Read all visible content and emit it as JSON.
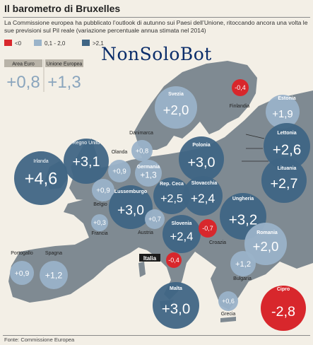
{
  "title": "Il barometro di Bruxelles",
  "subtitle": "La Commissione europea ha pubblicato l’outlook di autunno sui Paesi dell’Unione, ritoccando ancora una volta le sue previsioni sul Pil reale (variazione percentuale annua stimata nel 2014)",
  "source": "Fonte: Commissione Europea",
  "watermark": "NonSoloBot",
  "colors": {
    "negative": "#d8272c",
    "low": "#9ab3c9",
    "high": "#3f6584",
    "map": "#7f8a92",
    "background": "#f3efe6"
  },
  "chart_data": {
    "type": "bubble-map",
    "legend": [
      {
        "label": "<0",
        "color": "#d8272c"
      },
      {
        "label": "0,1 - 2,0",
        "color": "#9ab3c9"
      },
      {
        "label": ">2,1",
        "color": "#3f6584"
      }
    ],
    "summary": [
      {
        "label": "Area Euro",
        "value": 0.8,
        "display": "+0,8"
      },
      {
        "label": "Unione Europea",
        "value": 1.3,
        "display": "+1,3"
      }
    ],
    "countries": [
      {
        "name": "Irlanda",
        "value": 4.6,
        "display": "+4,6"
      },
      {
        "name": "Regno Unito",
        "value": 3.1,
        "display": "+3,1"
      },
      {
        "name": "Olanda",
        "value": 0.9,
        "display": "+0,9"
      },
      {
        "name": "Danimarca",
        "value": 0.8,
        "display": "+0,8"
      },
      {
        "name": "Germania",
        "value": 1.3,
        "display": "+1,3"
      },
      {
        "name": "Belgio",
        "value": 0.9,
        "display": "+0,9"
      },
      {
        "name": "Lussemburgo",
        "value": 3.0,
        "display": "+3,0"
      },
      {
        "name": "Francia",
        "value": 0.3,
        "display": "+0,3"
      },
      {
        "name": "Rep. Ceca",
        "value": 2.5,
        "display": "+2,5"
      },
      {
        "name": "Austria",
        "value": 0.7,
        "display": "+0,7"
      },
      {
        "name": "Slovacchia",
        "value": 2.4,
        "display": "+2,4"
      },
      {
        "name": "Polonia",
        "value": 3.0,
        "display": "+3,0"
      },
      {
        "name": "Svezia",
        "value": 2.0,
        "display": "+2,0"
      },
      {
        "name": "Finlandia",
        "value": -0.4,
        "display": "-0,4"
      },
      {
        "name": "Estonia",
        "value": 1.9,
        "display": "+1,9"
      },
      {
        "name": "Lettonia",
        "value": 2.6,
        "display": "+2,6"
      },
      {
        "name": "Lituania",
        "value": 2.7,
        "display": "+2,7"
      },
      {
        "name": "Ungheria",
        "value": 3.2,
        "display": "+3,2"
      },
      {
        "name": "Slovenia",
        "value": 2.4,
        "display": "+2,4"
      },
      {
        "name": "Croazia",
        "value": -0.7,
        "display": "-0,7"
      },
      {
        "name": "Italia",
        "value": -0.4,
        "display": "-0,4"
      },
      {
        "name": "Romania",
        "value": 2.0,
        "display": "+2,0"
      },
      {
        "name": "Bulgaria",
        "value": 1.2,
        "display": "+1,2"
      },
      {
        "name": "Portogallo",
        "value": 0.9,
        "display": "+0,9"
      },
      {
        "name": "Spagna",
        "value": 1.2,
        "display": "+1,2"
      },
      {
        "name": "Malta",
        "value": 3.0,
        "display": "+3,0"
      },
      {
        "name": "Grecia",
        "value": 0.6,
        "display": "+0,6"
      },
      {
        "name": "Cipro",
        "value": -2.8,
        "display": "-2,8"
      }
    ]
  }
}
